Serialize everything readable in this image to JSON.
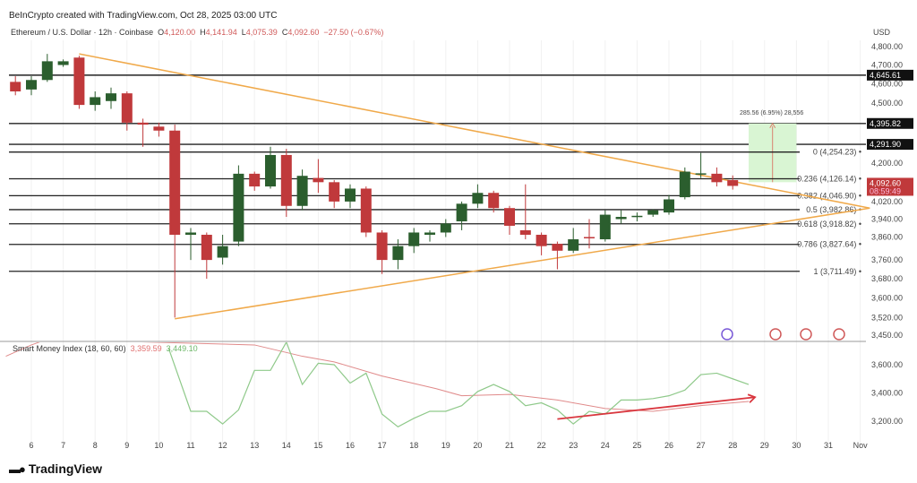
{
  "credit": "BeInCrypto created with TradingView.com, Oct 28, 2025 03:00 UTC",
  "legend": {
    "symbol": "Ethereum / U.S. Dollar · 12h · Coinbase",
    "o_label": "O",
    "o": "4,120.00",
    "h_label": "H",
    "h": "4,141.94",
    "l_label": "L",
    "l": "4,075.39",
    "c_label": "C",
    "c": "4,092.60",
    "change": "−27.50 (−0.67%)"
  },
  "smi_legend": {
    "name": "Smart Money Index (18, 60, 60)",
    "v1": "3,359.59",
    "v2": "3,449.10"
  },
  "logo": "TradingView",
  "colors": {
    "up": "#2b5e2e",
    "down": "#c0393b",
    "trend": "#f0a94a",
    "smi": "#8fc98a",
    "smi_signal": "#e08a8a",
    "target_box": "#d9f5d3"
  },
  "chart_data": {
    "type": "candlestick",
    "currency": "USD",
    "y_ticks": [
      "4,800.00",
      "4,700.00",
      "4,600.00",
      "4,500.00",
      "4,200.00",
      "4,020.00",
      "3,940.00",
      "3,860.00",
      "3,760.00",
      "3,680.00",
      "3,600.00",
      "3,520.00",
      "3,450.00"
    ],
    "y_tick_values": [
      4800,
      4700,
      4600,
      4500,
      4200,
      4020,
      3940,
      3860,
      3760,
      3680,
      3600,
      3520,
      3450
    ],
    "ylim": [
      3450,
      4800
    ],
    "x_ticks": [
      "6",
      "7",
      "8",
      "9",
      "10",
      "11",
      "12",
      "13",
      "14",
      "15",
      "16",
      "17",
      "18",
      "19",
      "20",
      "21",
      "22",
      "23",
      "24",
      "25",
      "26",
      "27",
      "28",
      "29",
      "30",
      "31",
      "Nov"
    ],
    "candles": [
      [
        4610,
        4560,
        4640,
        4540
      ],
      [
        4570,
        4620,
        4640,
        4540
      ],
      [
        4620,
        4720,
        4760,
        4610
      ],
      [
        4700,
        4720,
        4730,
        4690
      ],
      [
        4740,
        4490,
        4750,
        4470
      ],
      [
        4490,
        4530,
        4560,
        4460
      ],
      [
        4510,
        4550,
        4580,
        4470
      ],
      [
        4550,
        4400,
        4560,
        4360
      ],
      [
        4400,
        4390,
        4420,
        4280
      ],
      [
        4380,
        4360,
        4400,
        4330
      ],
      [
        4360,
        3870,
        4390,
        3520
      ],
      [
        3870,
        3880,
        3900,
        3760
      ],
      [
        3870,
        3760,
        3880,
        3680
      ],
      [
        3770,
        3820,
        3870,
        3740
      ],
      [
        3840,
        4150,
        4190,
        3820
      ],
      [
        4150,
        4090,
        4160,
        4070
      ],
      [
        4090,
        4240,
        4280,
        4080
      ],
      [
        4240,
        4000,
        4270,
        3950
      ],
      [
        4000,
        4140,
        4170,
        3980
      ],
      [
        4130,
        4110,
        4220,
        4060
      ],
      [
        4110,
        4020,
        4120,
        3990
      ],
      [
        4020,
        4080,
        4100,
        3990
      ],
      [
        4080,
        3880,
        4090,
        3860
      ],
      [
        3880,
        3760,
        3890,
        3700
      ],
      [
        3760,
        3820,
        3850,
        3720
      ],
      [
        3820,
        3880,
        3900,
        3790
      ],
      [
        3870,
        3880,
        3890,
        3840
      ],
      [
        3880,
        3920,
        3940,
        3860
      ],
      [
        3930,
        4010,
        4020,
        3890
      ],
      [
        4010,
        4060,
        4100,
        3990
      ],
      [
        4060,
        3990,
        4070,
        3970
      ],
      [
        3990,
        3910,
        4000,
        3870
      ],
      [
        3890,
        3870,
        4100,
        3850
      ],
      [
        3870,
        3820,
        3880,
        3780
      ],
      [
        3830,
        3800,
        3840,
        3720
      ],
      [
        3800,
        3850,
        3900,
        3790
      ],
      [
        3860,
        3858,
        3940,
        3810
      ],
      [
        3850,
        3960,
        3980,
        3840
      ],
      [
        3940,
        3950,
        3980,
        3920
      ],
      [
        3950,
        3955,
        3970,
        3930
      ],
      [
        3960,
        3980,
        3985,
        3950
      ],
      [
        3970,
        4030,
        4050,
        3960
      ],
      [
        4040,
        4160,
        4180,
        4030
      ],
      [
        4150,
        4152,
        4250,
        4130
      ],
      [
        4150,
        4110,
        4180,
        4090
      ],
      [
        4120,
        4092.6,
        4141.94,
        4075.39
      ]
    ],
    "first_candle_day": 5.5,
    "candle_interval_days": 0.5,
    "levels": [
      {
        "price": 4645.61,
        "label": "4,645.61"
      },
      {
        "price": 4395.82,
        "label": "4,395.82"
      },
      {
        "price": 4291.9,
        "label": "4,291.90"
      }
    ],
    "last_price": {
      "label": "4,092.60",
      "countdown": "08:59:49"
    },
    "fib": [
      {
        "ratio": "0",
        "price": 4254.23,
        "label": "0 (4,254.23)"
      },
      {
        "ratio": "0.236",
        "price": 4126.14,
        "label": "0.236 (4,126.14)"
      },
      {
        "ratio": "0.382",
        "price": 4046.9,
        "label": "0.382 (4,046.90)"
      },
      {
        "ratio": "0.5",
        "price": 3982.86,
        "label": "0.5 (3,982.86)"
      },
      {
        "ratio": "0.618",
        "price": 3918.82,
        "label": "0.618 (3,918.82)"
      },
      {
        "ratio": "0.786",
        "price": 3827.64,
        "label": "0.786 (3,827.64)"
      },
      {
        "ratio": "1",
        "price": 3711.49,
        "label": "1 (3,711.49)"
      }
    ],
    "trendlines": [
      {
        "name": "upper",
        "from": [
          7.5,
          4760
        ],
        "to": [
          32.3,
          3990
        ]
      },
      {
        "name": "lower",
        "from": [
          10.5,
          3515
        ],
        "to": [
          32.3,
          3990
        ]
      }
    ],
    "target": {
      "label": "285.56 (6.95%) 28,556",
      "from_price": 4110,
      "to_price": 4395.82,
      "from_day": 28.5,
      "to_day": 30
    },
    "smi": {
      "y_ticks": [
        "3,600.00",
        "3,400.00",
        "3,200.00"
      ],
      "y_tick_values": [
        3600,
        3400,
        3200
      ],
      "smi_series": [
        [
          10.3,
          3720
        ],
        [
          11,
          3270
        ],
        [
          11.5,
          3270
        ],
        [
          12,
          3180
        ],
        [
          12.5,
          3280
        ],
        [
          13,
          3560
        ],
        [
          13.5,
          3560
        ],
        [
          14,
          3760
        ],
        [
          14.5,
          3460
        ],
        [
          15,
          3610
        ],
        [
          15.5,
          3600
        ],
        [
          16,
          3470
        ],
        [
          16.5,
          3540
        ],
        [
          17,
          3250
        ],
        [
          17.5,
          3160
        ],
        [
          18,
          3220
        ],
        [
          18.5,
          3270
        ],
        [
          19,
          3270
        ],
        [
          19.5,
          3310
        ],
        [
          20,
          3410
        ],
        [
          20.5,
          3460
        ],
        [
          21,
          3410
        ],
        [
          21.5,
          3310
        ],
        [
          22,
          3330
        ],
        [
          22.5,
          3280
        ],
        [
          23,
          3180
        ],
        [
          23.5,
          3270
        ],
        [
          24,
          3250
        ],
        [
          24.5,
          3350
        ],
        [
          25,
          3350
        ],
        [
          25.5,
          3360
        ],
        [
          26,
          3380
        ],
        [
          26.5,
          3420
        ],
        [
          27,
          3530
        ],
        [
          27.5,
          3540
        ],
        [
          28,
          3500
        ],
        [
          28.5,
          3460
        ]
      ],
      "signal_series": [
        [
          5.2,
          3660
        ],
        [
          6,
          3740
        ],
        [
          6.5,
          3780
        ],
        [
          13,
          3740
        ],
        [
          14.5,
          3660
        ],
        [
          15.5,
          3620
        ],
        [
          17,
          3520
        ],
        [
          18.7,
          3430
        ],
        [
          19.5,
          3380
        ],
        [
          21,
          3390
        ],
        [
          22.5,
          3350
        ],
        [
          24,
          3290
        ],
        [
          25.5,
          3270
        ],
        [
          27,
          3310
        ],
        [
          28.5,
          3340
        ]
      ],
      "arrow": {
        "from": [
          22.5,
          3215
        ],
        "to": [
          28.7,
          3370
        ]
      }
    }
  }
}
